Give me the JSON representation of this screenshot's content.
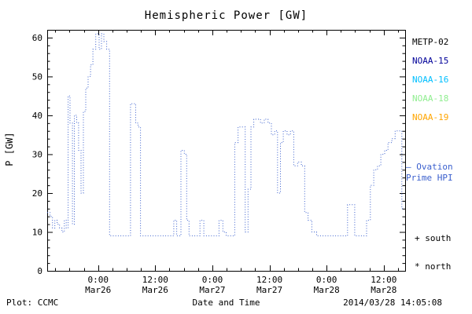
{
  "footer": {
    "plot_credit": "Plot: CCMC",
    "timestamp": "2014/03/28 14:05:08"
  },
  "legend": {
    "items": [
      {
        "label": "METP-02",
        "color": "#000000"
      },
      {
        "label": "NOAA-15",
        "color": "#000099"
      },
      {
        "label": "NOAA-16",
        "color": "#00bfff"
      },
      {
        "label": "NOAA-18",
        "color": "#90ee90"
      },
      {
        "label": "NOAA-19",
        "color": "#ffa500"
      }
    ],
    "ovation_line1": "– Ovation",
    "ovation_line2": "Prime HPI",
    "ovation_color": "#3a5fcd",
    "south_marker": "+ south",
    "north_marker": "* north"
  },
  "chart_data": {
    "type": "line",
    "title": "Hemispheric Power [GW]",
    "xlabel": "Date and Time",
    "ylabel": "P [GW]",
    "ylim": [
      0,
      62
    ],
    "xlim_hours": [
      -10.7,
      64.5
    ],
    "y_ticks": [
      0,
      10,
      20,
      30,
      40,
      50,
      60
    ],
    "y_minor_step": 2,
    "x_minor_step_hours": 3,
    "x_ticks": [
      {
        "hour": 0,
        "time": "0:00",
        "date": "Mar26"
      },
      {
        "hour": 12,
        "time": "12:00",
        "date": "Mar26"
      },
      {
        "hour": 24,
        "time": "0:00",
        "date": "Mar27"
      },
      {
        "hour": 36,
        "time": "12:00",
        "date": "Mar27"
      },
      {
        "hour": 48,
        "time": "0:00",
        "date": "Mar28"
      },
      {
        "hour": 60,
        "time": "12:00",
        "date": "Mar28"
      }
    ],
    "line_color": "#3a5fcd",
    "line_style": "dotted",
    "legend_position": "right",
    "grid": false,
    "series": [
      {
        "name": "Ovation Prime HPI",
        "step": true,
        "points": [
          [
            -10.7,
            15
          ],
          [
            -10.1,
            14
          ],
          [
            -9.6,
            11
          ],
          [
            -9.1,
            13
          ],
          [
            -8.6,
            12
          ],
          [
            -8.1,
            11
          ],
          [
            -7.6,
            10
          ],
          [
            -7.1,
            13
          ],
          [
            -6.7,
            11
          ],
          [
            -6.3,
            45
          ],
          [
            -5.9,
            38
          ],
          [
            -5.4,
            12
          ],
          [
            -5.0,
            40
          ],
          [
            -4.5,
            38
          ],
          [
            -4.1,
            31
          ],
          [
            -3.6,
            20
          ],
          [
            -3.1,
            41
          ],
          [
            -2.6,
            47
          ],
          [
            -2.1,
            50
          ],
          [
            -1.6,
            53
          ],
          [
            -1.1,
            57
          ],
          [
            -0.5,
            61
          ],
          [
            0.2,
            57
          ],
          [
            0.7,
            61
          ],
          [
            1.2,
            59
          ],
          [
            1.8,
            57
          ],
          [
            2.4,
            9
          ],
          [
            6.8,
            43
          ],
          [
            7.4,
            43
          ],
          [
            7.9,
            38
          ],
          [
            8.4,
            37
          ],
          [
            8.9,
            9
          ],
          [
            15.9,
            13
          ],
          [
            16.5,
            9
          ],
          [
            17.4,
            31
          ],
          [
            18.1,
            30
          ],
          [
            18.6,
            13
          ],
          [
            19.1,
            9
          ],
          [
            21.4,
            13
          ],
          [
            22.2,
            9
          ],
          [
            25.4,
            13
          ],
          [
            26.2,
            10
          ],
          [
            26.9,
            9
          ],
          [
            28.7,
            33
          ],
          [
            29.4,
            37
          ],
          [
            30.2,
            37
          ],
          [
            30.9,
            10
          ],
          [
            31.5,
            21
          ],
          [
            32.1,
            37
          ],
          [
            32.7,
            39
          ],
          [
            33.4,
            39
          ],
          [
            34.1,
            38
          ],
          [
            34.9,
            39
          ],
          [
            35.7,
            38
          ],
          [
            36.4,
            35
          ],
          [
            37.1,
            36
          ],
          [
            37.7,
            20
          ],
          [
            38.3,
            33
          ],
          [
            38.9,
            36
          ],
          [
            39.7,
            35
          ],
          [
            40.4,
            36
          ],
          [
            41.1,
            27
          ],
          [
            41.9,
            28
          ],
          [
            42.7,
            27
          ],
          [
            43.4,
            15
          ],
          [
            44.1,
            13
          ],
          [
            44.9,
            10
          ],
          [
            45.9,
            9
          ],
          [
            52.4,
            17
          ],
          [
            53.2,
            17
          ],
          [
            53.9,
            9
          ],
          [
            56.4,
            13
          ],
          [
            57.2,
            22
          ],
          [
            57.9,
            26
          ],
          [
            58.7,
            27
          ],
          [
            59.4,
            30
          ],
          [
            60.2,
            31
          ],
          [
            60.9,
            33
          ],
          [
            61.7,
            34
          ],
          [
            62.4,
            36
          ],
          [
            63.2,
            36
          ],
          [
            63.8,
            16
          ]
        ]
      }
    ]
  }
}
